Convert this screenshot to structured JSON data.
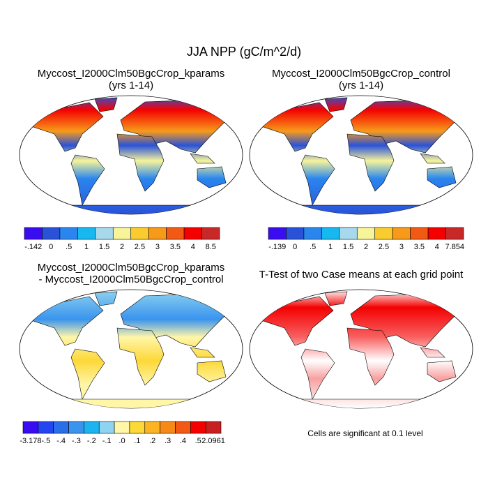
{
  "title": "JJA NPP (gC/m^2/d)",
  "panels": [
    {
      "title": "Myccost_I2000Clm50BgcCrop_kparams",
      "subtitle": "(yrs 1-14)",
      "colorbar": {
        "colors": [
          "#3a0cf0",
          "#2a52d8",
          "#2a86ee",
          "#17b8f0",
          "#a8d8ec",
          "#f7f49a",
          "#fbcc30",
          "#f79a1a",
          "#f25a14",
          "#f40000",
          "#c82828"
        ],
        "labels": [
          "-.142",
          "0",
          ".5",
          "1",
          "1.5",
          "2",
          "2.5",
          "3",
          "3.5",
          "4",
          "8.5"
        ]
      }
    },
    {
      "title": "Myccost_I2000Clm50BgcCrop_control",
      "subtitle": "(yrs 1-14)",
      "colorbar": {
        "colors": [
          "#3a0cf0",
          "#2a52d8",
          "#2a86ee",
          "#17b8f0",
          "#a8d8ec",
          "#f7f49a",
          "#fbcc30",
          "#f79a1a",
          "#f25a14",
          "#f40000",
          "#c82828"
        ],
        "labels": [
          "-.139",
          "0",
          ".5",
          "1",
          "1.5",
          "2",
          "2.5",
          "3",
          "3.5",
          "4",
          "7.854"
        ]
      }
    },
    {
      "title": "Myccost_I2000Clm50BgcCrop_kparams",
      "subtitle": "- Myccost_I2000Clm50BgcCrop_control",
      "colorbar": {
        "colors": [
          "#3a0cf0",
          "#2545f0",
          "#2a6ee8",
          "#3a94ee",
          "#1cb4f0",
          "#8ed4f0",
          "#fff6a8",
          "#fcd838",
          "#fcb424",
          "#f78a16",
          "#f25a14",
          "#f40000",
          "#c82020"
        ],
        "labels": [
          "-3.178",
          "-.5",
          "-.4",
          "-.3",
          "-.2",
          "-.1",
          ".0",
          ".1",
          ".2",
          ".3",
          ".4",
          ".5",
          "2.0961"
        ]
      }
    },
    {
      "title": "T-Test of two Case means at each grid point",
      "note": "Cells are significant at 0.1 level"
    }
  ]
}
